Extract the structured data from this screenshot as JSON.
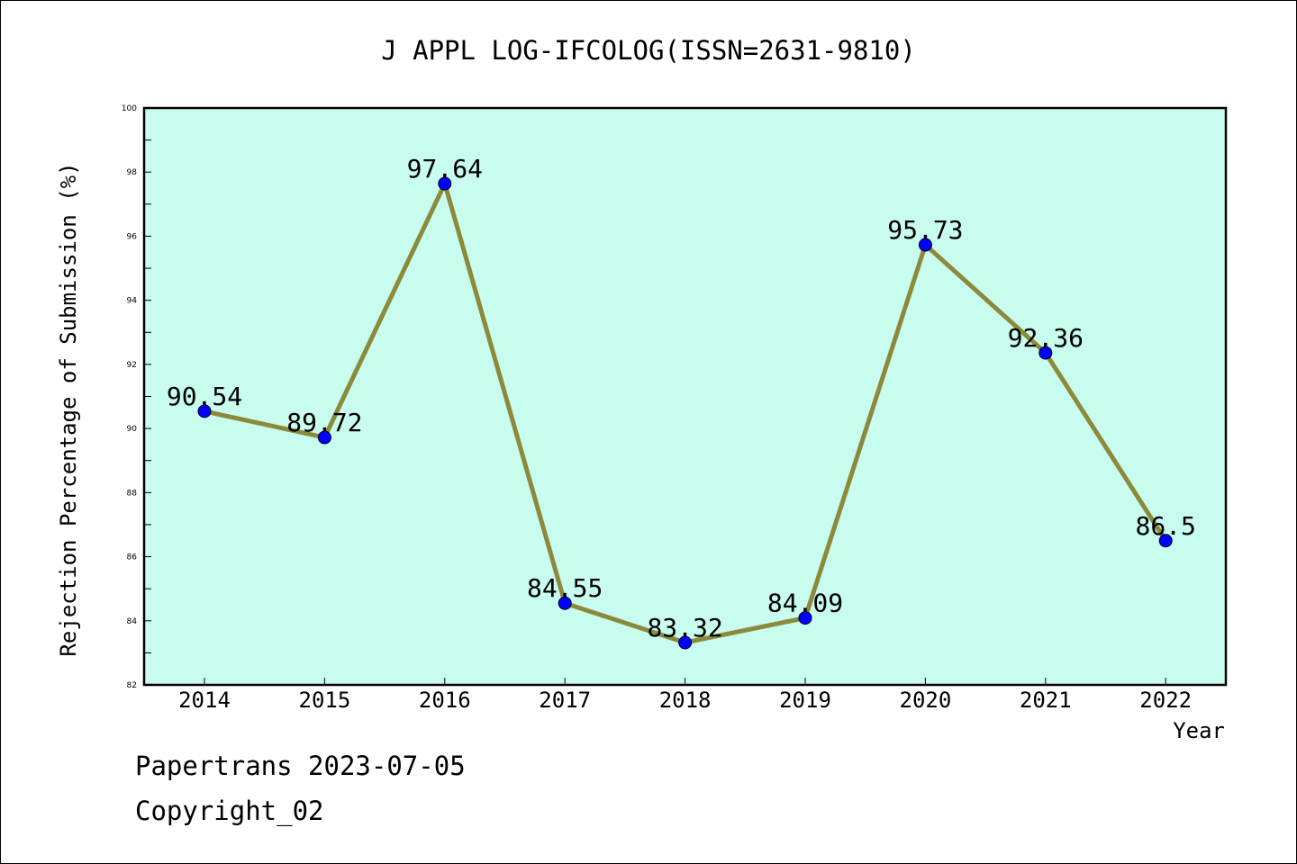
{
  "chart_data": {
    "type": "line",
    "title": "J APPL LOG-IFCOLOG(ISSN=2631-9810)",
    "xlabel": "Year",
    "ylabel": "Rejection Percentage of Submission (%)",
    "x": [
      "2014",
      "2015",
      "2016",
      "2017",
      "2018",
      "2019",
      "2020",
      "2021",
      "2022"
    ],
    "values": [
      90.54,
      89.72,
      97.64,
      84.55,
      83.32,
      84.09,
      95.73,
      92.36,
      86.5
    ],
    "data_labels": [
      "90.54",
      "89.72",
      "97.64",
      "84.55",
      "83.32",
      "84.09",
      "95.73",
      "92.36",
      "86.5"
    ],
    "ylim": [
      82,
      100
    ],
    "yticks": [
      82,
      84,
      86,
      88,
      90,
      92,
      94,
      96,
      98,
      100
    ],
    "grid": false,
    "colors": {
      "plot_background": "#c8fcee",
      "line": "#8b8a3a",
      "marker": "#0000ff"
    }
  },
  "footer": {
    "line1": "Papertrans 2023-07-05",
    "line2": "Copyright_02"
  }
}
